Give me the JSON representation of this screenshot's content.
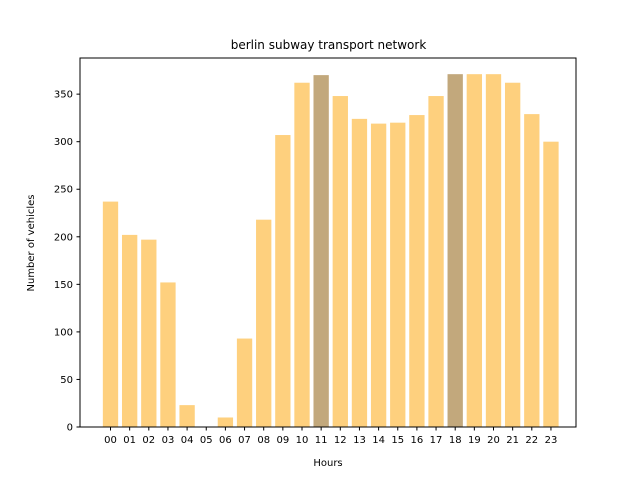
{
  "chart_data": {
    "type": "bar",
    "title": "berlin subway transport network",
    "xlabel": "Hours",
    "ylabel": "Number of vehicles",
    "ylim": [
      0,
      388
    ],
    "yticks": [
      0,
      50,
      100,
      150,
      200,
      250,
      300,
      350
    ],
    "categories": [
      "00",
      "01",
      "02",
      "03",
      "04",
      "05",
      "06",
      "07",
      "08",
      "09",
      "10",
      "11",
      "12",
      "13",
      "14",
      "15",
      "16",
      "17",
      "18",
      "19",
      "20",
      "21",
      "22",
      "23"
    ],
    "values": [
      237,
      202,
      197,
      152,
      23,
      0,
      10,
      93,
      218,
      307,
      362,
      370,
      348,
      324,
      319,
      320,
      328,
      348,
      371,
      371,
      371,
      362,
      329,
      300
    ],
    "highlight_categories": [
      "11",
      "18"
    ],
    "colors": {
      "bar": "#fed07e",
      "highlight": "#c2a87c",
      "axis": "#000000"
    },
    "grid": false,
    "legend": "none"
  }
}
